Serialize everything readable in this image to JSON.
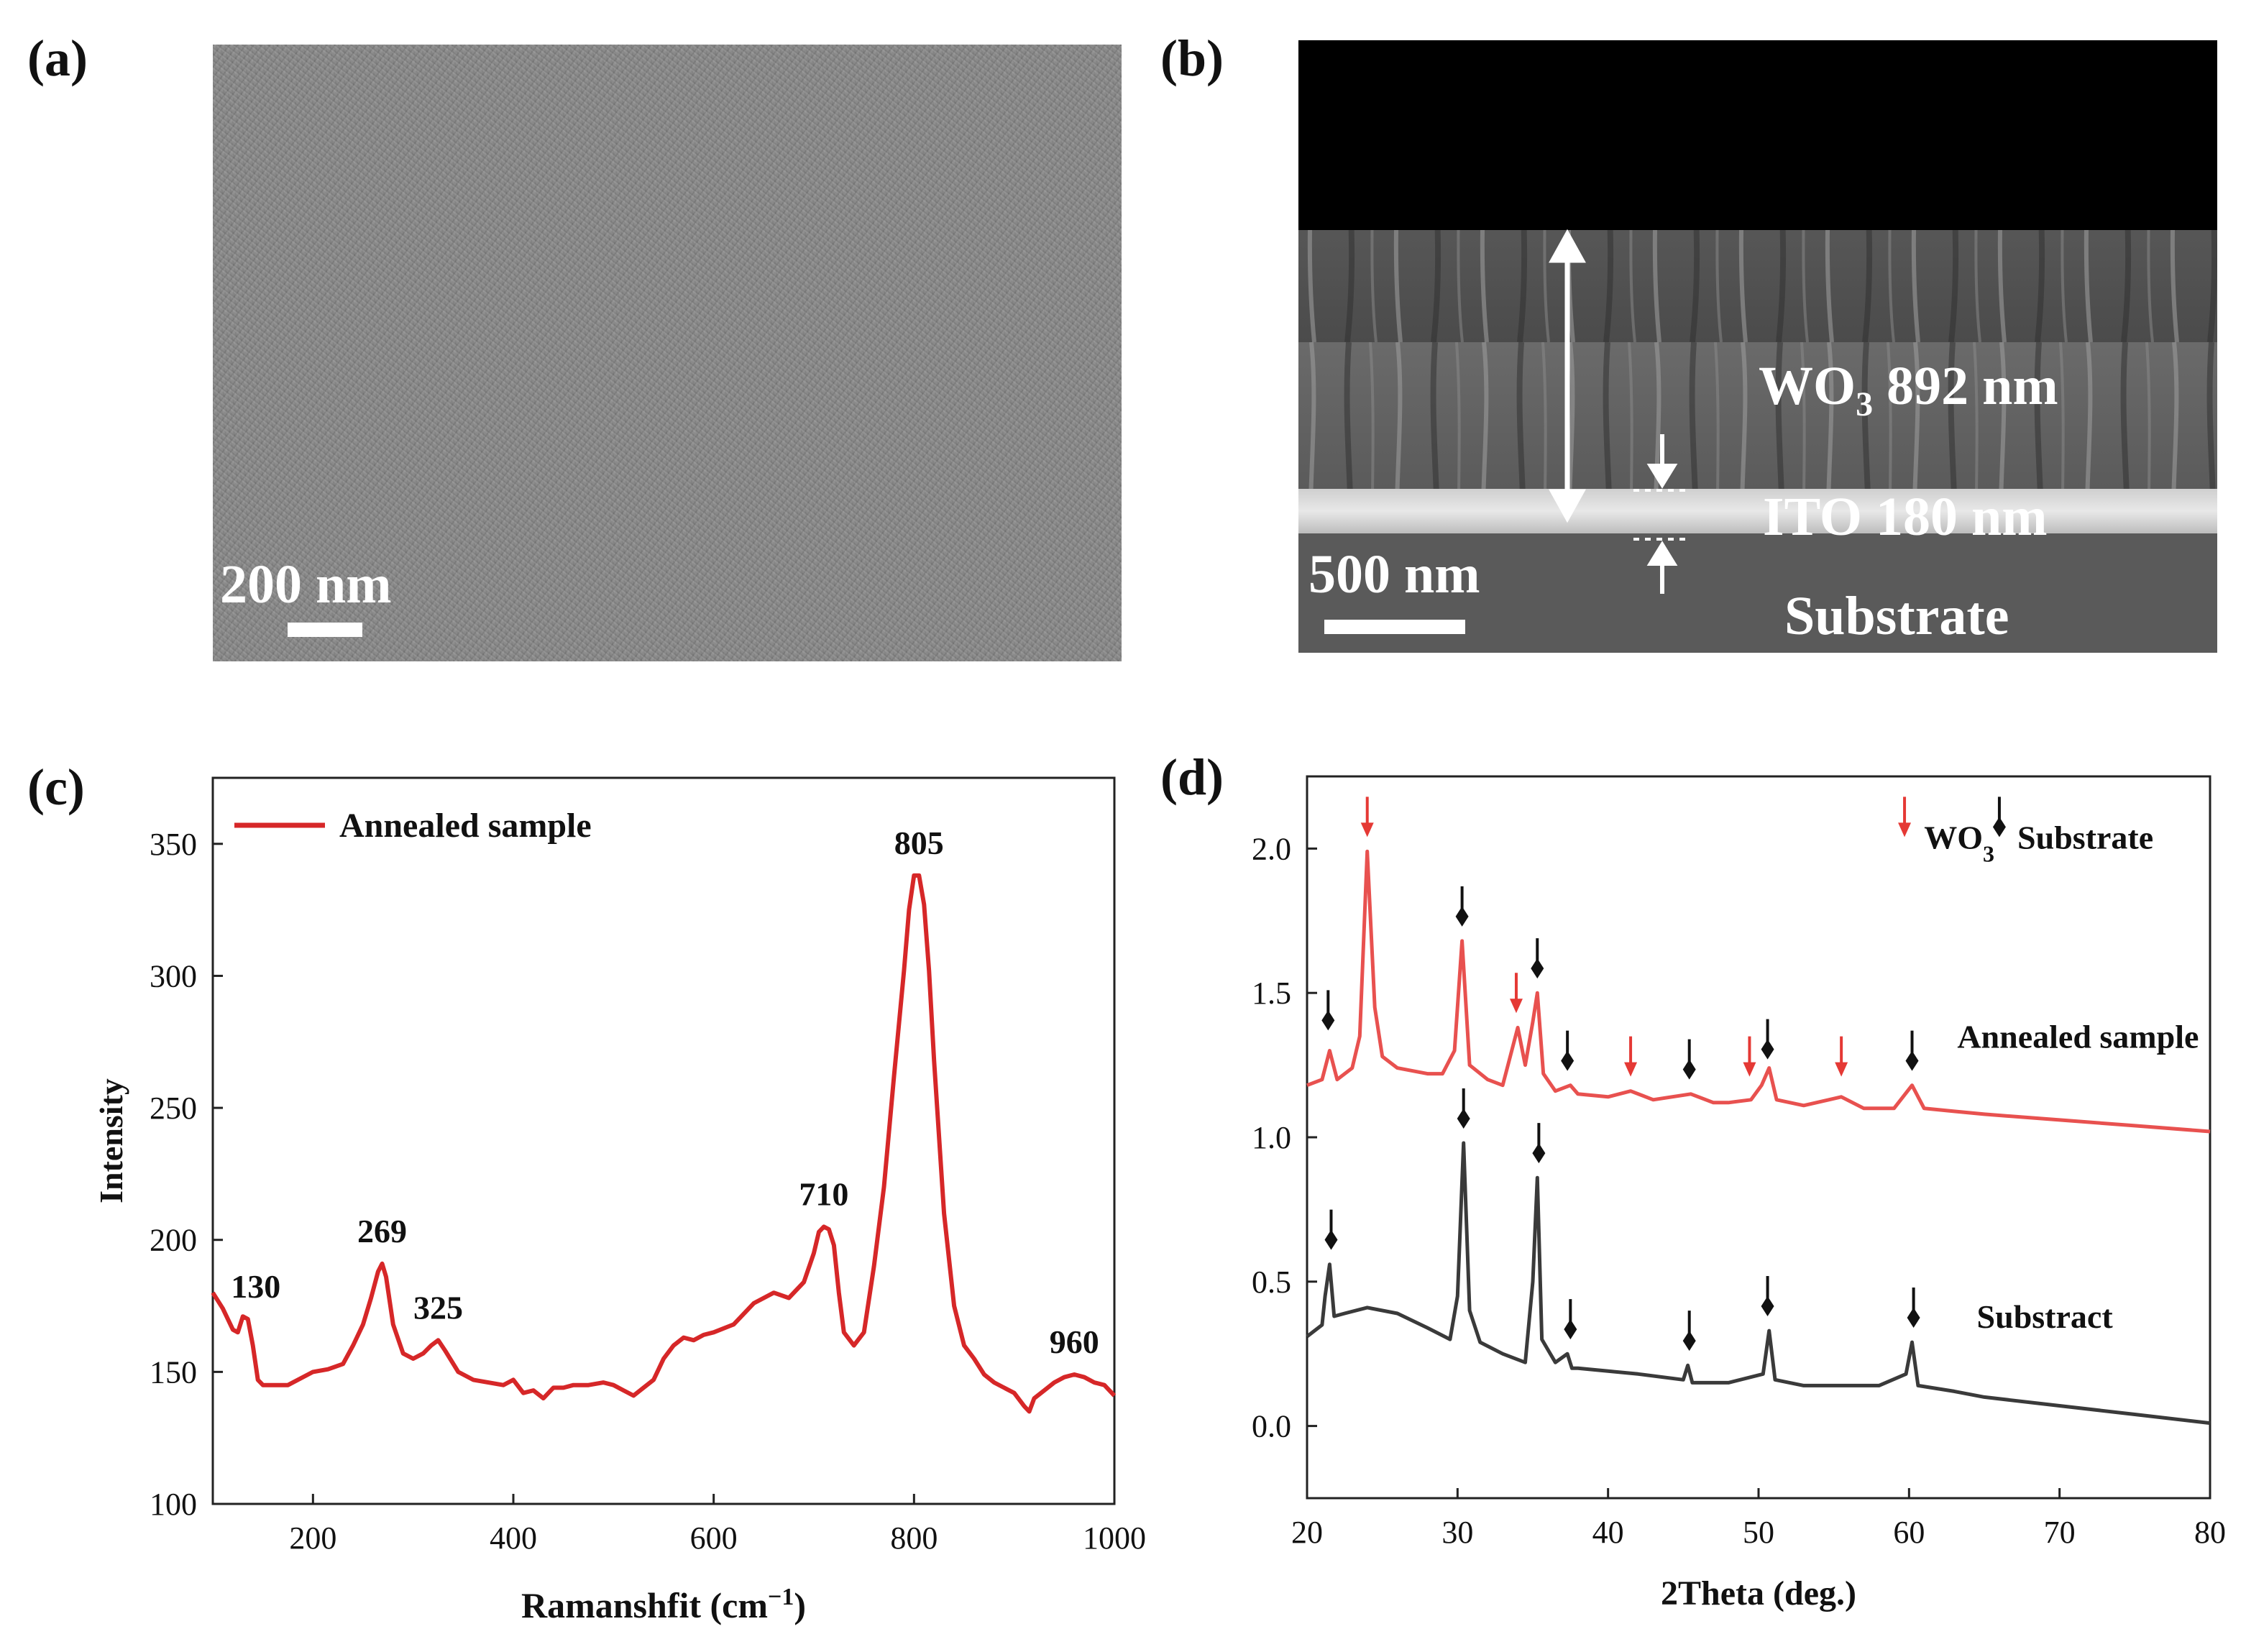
{
  "panels": {
    "a": {
      "label": "(a)",
      "scale_label": "200 nm"
    },
    "b": {
      "label": "(b)",
      "scale_label": "500 nm",
      "wo3_text": "WO",
      "wo3_sub": "3",
      "wo3_thickness": "892 nm",
      "ito_label": "ITO 180 nm",
      "substrate_label": "Substrate"
    },
    "c": {
      "label": "(c)"
    },
    "d": {
      "label": "(d)"
    }
  },
  "chart_data": [
    {
      "id": "c",
      "type": "line",
      "xlabel": "Ramanshfit (cm",
      "xlabel_sup": "−1",
      "xlabel_close": ")",
      "ylabel": "Intensity",
      "xlim": [
        100,
        1000
      ],
      "ylim": [
        100,
        375
      ],
      "xticks": [
        200,
        400,
        600,
        800,
        1000
      ],
      "yticks": [
        100,
        150,
        200,
        250,
        300,
        350
      ],
      "color": "#d62728",
      "legend": "Annealed sample",
      "series": [
        {
          "name": "Annealed sample",
          "x": [
            100,
            110,
            120,
            125,
            130,
            135,
            140,
            145,
            150,
            160,
            175,
            200,
            215,
            230,
            240,
            250,
            258,
            265,
            269,
            273,
            280,
            290,
            300,
            310,
            318,
            325,
            332,
            345,
            360,
            375,
            390,
            400,
            410,
            420,
            430,
            440,
            450,
            460,
            475,
            490,
            500,
            510,
            520,
            530,
            540,
            550,
            560,
            570,
            580,
            590,
            600,
            620,
            640,
            660,
            675,
            690,
            700,
            705,
            710,
            715,
            720,
            725,
            730,
            740,
            750,
            760,
            770,
            780,
            790,
            795,
            800,
            805,
            810,
            815,
            820,
            830,
            840,
            850,
            860,
            870,
            880,
            890,
            900,
            910,
            915,
            920,
            930,
            940,
            950,
            960,
            970,
            980,
            990,
            1000
          ],
          "y": [
            180,
            174,
            166,
            165,
            171,
            170,
            160,
            147,
            145,
            145,
            145,
            150,
            151,
            153,
            160,
            168,
            178,
            188,
            191,
            186,
            168,
            157,
            155,
            157,
            160,
            162,
            158,
            150,
            147,
            146,
            145,
            147,
            142,
            143,
            140,
            144,
            144,
            145,
            145,
            146,
            145,
            143,
            141,
            144,
            147,
            155,
            160,
            163,
            162,
            164,
            165,
            168,
            176,
            180,
            178,
            184,
            195,
            203,
            205,
            204,
            198,
            180,
            165,
            160,
            165,
            190,
            220,
            262,
            302,
            325,
            338,
            338,
            327,
            302,
            268,
            210,
            175,
            160,
            155,
            149,
            146,
            144,
            142,
            137,
            135,
            140,
            143,
            146,
            148,
            149,
            148,
            146,
            145,
            141
          ]
        }
      ],
      "annotations": [
        {
          "x": 130,
          "y": 170,
          "text": "130"
        },
        {
          "x": 269,
          "y": 191,
          "text": "269"
        },
        {
          "x": 325,
          "y": 162,
          "text": "325"
        },
        {
          "x": 710,
          "y": 205,
          "text": "710"
        },
        {
          "x": 805,
          "y": 338,
          "text": "805"
        },
        {
          "x": 960,
          "y": 149,
          "text": "960"
        }
      ]
    },
    {
      "id": "d",
      "type": "line",
      "xlabel": "2Theta (deg.)",
      "xlim": [
        20,
        80
      ],
      "ylim": [
        -0.25,
        2.25
      ],
      "xticks": [
        20,
        30,
        40,
        50,
        60,
        70,
        80
      ],
      "yticks": [
        0.0,
        0.5,
        1.0,
        1.5,
        2.0
      ],
      "ytick_labels": [
        "0.0",
        "0.5",
        "1.0",
        "1.5",
        "2.0"
      ],
      "legend": {
        "wo3_text": "WO",
        "wo3_sub": "3",
        "substrate_text": "Substrate",
        "wo3_color": "#e53935",
        "substrate_color": "#111111"
      },
      "series": [
        {
          "name": "Annealed sample",
          "color": "#e8514f",
          "x": [
            20,
            21,
            21.5,
            22,
            23,
            23.5,
            24,
            24.5,
            25,
            26,
            27,
            28,
            29,
            29.8,
            30.3,
            30.8,
            32,
            33,
            33.5,
            34,
            34.5,
            35,
            35.3,
            35.7,
            36.5,
            37.5,
            38,
            40,
            41.5,
            43,
            45.5,
            47,
            48,
            49.5,
            50.2,
            50.7,
            51.2,
            53,
            55.5,
            57,
            59,
            60.2,
            61,
            63,
            65,
            70,
            75,
            80
          ],
          "y": [
            1.18,
            1.2,
            1.3,
            1.2,
            1.24,
            1.35,
            1.99,
            1.45,
            1.28,
            1.24,
            1.23,
            1.22,
            1.22,
            1.3,
            1.68,
            1.25,
            1.2,
            1.18,
            1.28,
            1.38,
            1.25,
            1.4,
            1.5,
            1.22,
            1.16,
            1.18,
            1.15,
            1.14,
            1.16,
            1.13,
            1.15,
            1.12,
            1.12,
            1.13,
            1.18,
            1.24,
            1.13,
            1.11,
            1.14,
            1.1,
            1.1,
            1.18,
            1.1,
            1.09,
            1.08,
            1.06,
            1.04,
            1.02
          ],
          "label": "Annealed sample"
        },
        {
          "name": "Substract",
          "color": "#3a3a3a",
          "x": [
            20,
            21,
            21.2,
            21.5,
            21.8,
            22.5,
            24,
            26,
            28,
            29.5,
            30,
            30.4,
            30.8,
            31.5,
            33,
            34.5,
            35,
            35.3,
            35.6,
            36.5,
            37.3,
            37.6,
            38,
            40,
            42,
            45,
            45.3,
            45.6,
            48,
            50.3,
            50.7,
            51.1,
            53,
            55,
            58,
            59.8,
            60.2,
            60.6,
            63,
            65,
            70,
            75,
            80
          ],
          "y": [
            0.31,
            0.35,
            0.45,
            0.56,
            0.38,
            0.39,
            0.41,
            0.39,
            0.34,
            0.3,
            0.45,
            0.98,
            0.4,
            0.29,
            0.25,
            0.22,
            0.5,
            0.86,
            0.3,
            0.22,
            0.25,
            0.2,
            0.2,
            0.19,
            0.18,
            0.16,
            0.21,
            0.15,
            0.15,
            0.18,
            0.33,
            0.16,
            0.14,
            0.14,
            0.14,
            0.18,
            0.29,
            0.14,
            0.12,
            0.1,
            0.07,
            0.04,
            0.01
          ],
          "label": "Substract"
        }
      ],
      "markers": [
        {
          "x": 24.0,
          "y": 2.04,
          "kind": "wo3"
        },
        {
          "x": 33.9,
          "y": 1.43,
          "kind": "wo3"
        },
        {
          "x": 41.5,
          "y": 1.21,
          "kind": "wo3"
        },
        {
          "x": 49.4,
          "y": 1.21,
          "kind": "wo3"
        },
        {
          "x": 55.5,
          "y": 1.21,
          "kind": "wo3"
        },
        {
          "x": 21.4,
          "y": 1.37,
          "kind": "sub"
        },
        {
          "x": 30.3,
          "y": 1.73,
          "kind": "sub"
        },
        {
          "x": 35.3,
          "y": 1.55,
          "kind": "sub"
        },
        {
          "x": 37.3,
          "y": 1.23,
          "kind": "sub"
        },
        {
          "x": 45.4,
          "y": 1.2,
          "kind": "sub"
        },
        {
          "x": 50.6,
          "y": 1.27,
          "kind": "sub"
        },
        {
          "x": 60.2,
          "y": 1.23,
          "kind": "sub"
        },
        {
          "x": 21.6,
          "y": 0.61,
          "kind": "sub"
        },
        {
          "x": 30.4,
          "y": 1.03,
          "kind": "sub"
        },
        {
          "x": 35.4,
          "y": 0.91,
          "kind": "sub"
        },
        {
          "x": 37.5,
          "y": 0.3,
          "kind": "sub"
        },
        {
          "x": 45.4,
          "y": 0.26,
          "kind": "sub"
        },
        {
          "x": 50.6,
          "y": 0.38,
          "kind": "sub"
        },
        {
          "x": 60.3,
          "y": 0.34,
          "kind": "sub"
        }
      ]
    }
  ]
}
